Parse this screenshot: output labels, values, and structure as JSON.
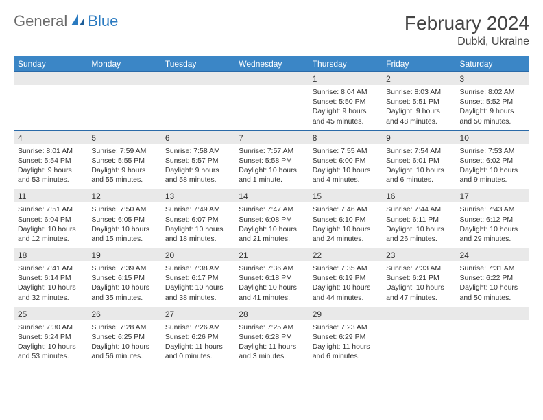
{
  "brand": {
    "part1": "General",
    "part2": "Blue"
  },
  "title": "February 2024",
  "subtitle": "Dubki, Ukraine",
  "header_bg": "#3b86c6",
  "date_bg": "#e9e9e9",
  "border_color": "#2a6aa8",
  "days": [
    "Sunday",
    "Monday",
    "Tuesday",
    "Wednesday",
    "Thursday",
    "Friday",
    "Saturday"
  ],
  "weeks": [
    [
      {
        "n": "",
        "sr": "",
        "ss": "",
        "d1": "",
        "d2": ""
      },
      {
        "n": "",
        "sr": "",
        "ss": "",
        "d1": "",
        "d2": ""
      },
      {
        "n": "",
        "sr": "",
        "ss": "",
        "d1": "",
        "d2": ""
      },
      {
        "n": "",
        "sr": "",
        "ss": "",
        "d1": "",
        "d2": ""
      },
      {
        "n": "1",
        "sr": "Sunrise: 8:04 AM",
        "ss": "Sunset: 5:50 PM",
        "d1": "Daylight: 9 hours",
        "d2": "and 45 minutes."
      },
      {
        "n": "2",
        "sr": "Sunrise: 8:03 AM",
        "ss": "Sunset: 5:51 PM",
        "d1": "Daylight: 9 hours",
        "d2": "and 48 minutes."
      },
      {
        "n": "3",
        "sr": "Sunrise: 8:02 AM",
        "ss": "Sunset: 5:52 PM",
        "d1": "Daylight: 9 hours",
        "d2": "and 50 minutes."
      }
    ],
    [
      {
        "n": "4",
        "sr": "Sunrise: 8:01 AM",
        "ss": "Sunset: 5:54 PM",
        "d1": "Daylight: 9 hours",
        "d2": "and 53 minutes."
      },
      {
        "n": "5",
        "sr": "Sunrise: 7:59 AM",
        "ss": "Sunset: 5:55 PM",
        "d1": "Daylight: 9 hours",
        "d2": "and 55 minutes."
      },
      {
        "n": "6",
        "sr": "Sunrise: 7:58 AM",
        "ss": "Sunset: 5:57 PM",
        "d1": "Daylight: 9 hours",
        "d2": "and 58 minutes."
      },
      {
        "n": "7",
        "sr": "Sunrise: 7:57 AM",
        "ss": "Sunset: 5:58 PM",
        "d1": "Daylight: 10 hours",
        "d2": "and 1 minute."
      },
      {
        "n": "8",
        "sr": "Sunrise: 7:55 AM",
        "ss": "Sunset: 6:00 PM",
        "d1": "Daylight: 10 hours",
        "d2": "and 4 minutes."
      },
      {
        "n": "9",
        "sr": "Sunrise: 7:54 AM",
        "ss": "Sunset: 6:01 PM",
        "d1": "Daylight: 10 hours",
        "d2": "and 6 minutes."
      },
      {
        "n": "10",
        "sr": "Sunrise: 7:53 AM",
        "ss": "Sunset: 6:02 PM",
        "d1": "Daylight: 10 hours",
        "d2": "and 9 minutes."
      }
    ],
    [
      {
        "n": "11",
        "sr": "Sunrise: 7:51 AM",
        "ss": "Sunset: 6:04 PM",
        "d1": "Daylight: 10 hours",
        "d2": "and 12 minutes."
      },
      {
        "n": "12",
        "sr": "Sunrise: 7:50 AM",
        "ss": "Sunset: 6:05 PM",
        "d1": "Daylight: 10 hours",
        "d2": "and 15 minutes."
      },
      {
        "n": "13",
        "sr": "Sunrise: 7:49 AM",
        "ss": "Sunset: 6:07 PM",
        "d1": "Daylight: 10 hours",
        "d2": "and 18 minutes."
      },
      {
        "n": "14",
        "sr": "Sunrise: 7:47 AM",
        "ss": "Sunset: 6:08 PM",
        "d1": "Daylight: 10 hours",
        "d2": "and 21 minutes."
      },
      {
        "n": "15",
        "sr": "Sunrise: 7:46 AM",
        "ss": "Sunset: 6:10 PM",
        "d1": "Daylight: 10 hours",
        "d2": "and 24 minutes."
      },
      {
        "n": "16",
        "sr": "Sunrise: 7:44 AM",
        "ss": "Sunset: 6:11 PM",
        "d1": "Daylight: 10 hours",
        "d2": "and 26 minutes."
      },
      {
        "n": "17",
        "sr": "Sunrise: 7:43 AM",
        "ss": "Sunset: 6:12 PM",
        "d1": "Daylight: 10 hours",
        "d2": "and 29 minutes."
      }
    ],
    [
      {
        "n": "18",
        "sr": "Sunrise: 7:41 AM",
        "ss": "Sunset: 6:14 PM",
        "d1": "Daylight: 10 hours",
        "d2": "and 32 minutes."
      },
      {
        "n": "19",
        "sr": "Sunrise: 7:39 AM",
        "ss": "Sunset: 6:15 PM",
        "d1": "Daylight: 10 hours",
        "d2": "and 35 minutes."
      },
      {
        "n": "20",
        "sr": "Sunrise: 7:38 AM",
        "ss": "Sunset: 6:17 PM",
        "d1": "Daylight: 10 hours",
        "d2": "and 38 minutes."
      },
      {
        "n": "21",
        "sr": "Sunrise: 7:36 AM",
        "ss": "Sunset: 6:18 PM",
        "d1": "Daylight: 10 hours",
        "d2": "and 41 minutes."
      },
      {
        "n": "22",
        "sr": "Sunrise: 7:35 AM",
        "ss": "Sunset: 6:19 PM",
        "d1": "Daylight: 10 hours",
        "d2": "and 44 minutes."
      },
      {
        "n": "23",
        "sr": "Sunrise: 7:33 AM",
        "ss": "Sunset: 6:21 PM",
        "d1": "Daylight: 10 hours",
        "d2": "and 47 minutes."
      },
      {
        "n": "24",
        "sr": "Sunrise: 7:31 AM",
        "ss": "Sunset: 6:22 PM",
        "d1": "Daylight: 10 hours",
        "d2": "and 50 minutes."
      }
    ],
    [
      {
        "n": "25",
        "sr": "Sunrise: 7:30 AM",
        "ss": "Sunset: 6:24 PM",
        "d1": "Daylight: 10 hours",
        "d2": "and 53 minutes."
      },
      {
        "n": "26",
        "sr": "Sunrise: 7:28 AM",
        "ss": "Sunset: 6:25 PM",
        "d1": "Daylight: 10 hours",
        "d2": "and 56 minutes."
      },
      {
        "n": "27",
        "sr": "Sunrise: 7:26 AM",
        "ss": "Sunset: 6:26 PM",
        "d1": "Daylight: 11 hours",
        "d2": "and 0 minutes."
      },
      {
        "n": "28",
        "sr": "Sunrise: 7:25 AM",
        "ss": "Sunset: 6:28 PM",
        "d1": "Daylight: 11 hours",
        "d2": "and 3 minutes."
      },
      {
        "n": "29",
        "sr": "Sunrise: 7:23 AM",
        "ss": "Sunset: 6:29 PM",
        "d1": "Daylight: 11 hours",
        "d2": "and 6 minutes."
      },
      {
        "n": "",
        "sr": "",
        "ss": "",
        "d1": "",
        "d2": ""
      },
      {
        "n": "",
        "sr": "",
        "ss": "",
        "d1": "",
        "d2": ""
      }
    ]
  ]
}
